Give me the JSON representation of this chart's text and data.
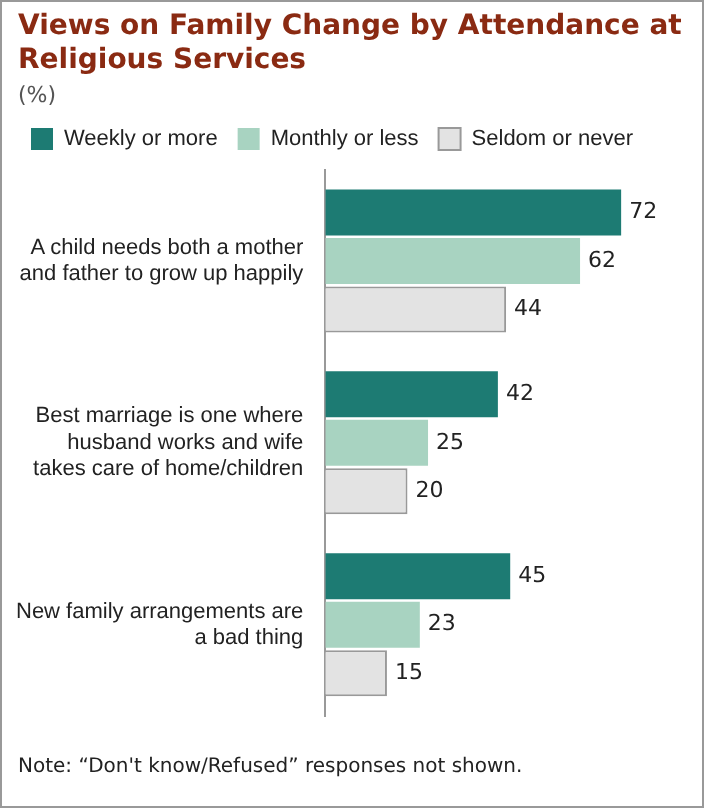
{
  "chart_data": {
    "type": "bar",
    "orientation": "horizontal",
    "title": "Views on Family Change by Attendance at Religious Services",
    "subtitle": "(%)",
    "categories": [
      "A child needs both a mother and father to grow up happily",
      "Best marriage is one where husband works and wife takes care of home/children",
      "New family arrangements are a bad thing"
    ],
    "series": [
      {
        "name": "Weekly or more",
        "color": "#1d7b73",
        "values": [
          72,
          42,
          45
        ]
      },
      {
        "name": "Monthly or less",
        "color": "#a8d3c1",
        "values": [
          62,
          25,
          23
        ]
      },
      {
        "name": "Seldom or never",
        "color": "#e3e3e3",
        "values": [
          44,
          20,
          15
        ]
      }
    ],
    "data_labels": true,
    "legend": "top",
    "grid": false,
    "tick_labels": "y",
    "annotations": [
      "Note: “Don't know/Refused” responses not shown."
    ]
  }
}
